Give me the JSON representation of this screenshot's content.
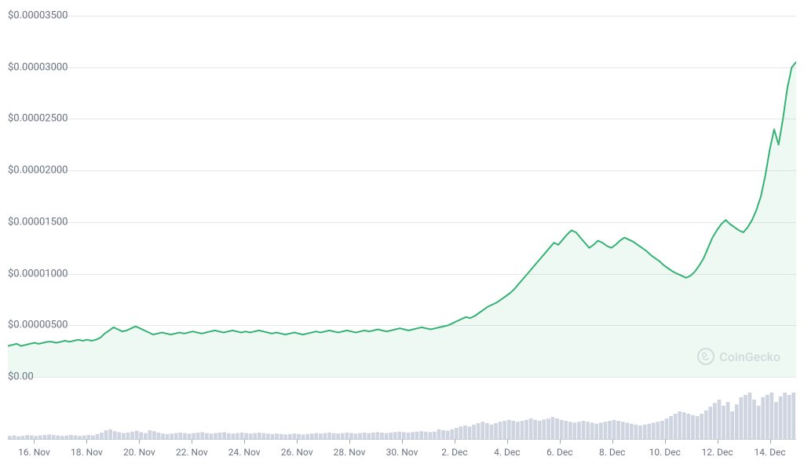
{
  "chart": {
    "type": "line",
    "line_color": "#34b274",
    "line_width": 2,
    "fill_color": "rgba(52,178,116,0.08)",
    "background_color": "#ffffff",
    "grid_color": "#e5e7eb",
    "axis_text_color": "#6b7280",
    "axis_fontsize": 13,
    "ylim": [
      0,
      3.5e-05
    ],
    "y_ticks": [
      {
        "value": 0,
        "label": "$0.00"
      },
      {
        "value": 5e-06,
        "label": "$0.00000500"
      },
      {
        "value": 1e-05,
        "label": "$0.00001000"
      },
      {
        "value": 1.5e-05,
        "label": "$0.00001500"
      },
      {
        "value": 2e-05,
        "label": "$0.00002000"
      },
      {
        "value": 2.5e-05,
        "label": "$0.00002500"
      },
      {
        "value": 3e-05,
        "label": "$0.00003000"
      },
      {
        "value": 3.5e-05,
        "label": "$0.00003500"
      }
    ],
    "x_labels": [
      "16. Nov",
      "18. Nov",
      "20. Nov",
      "22. Nov",
      "24. Nov",
      "26. Nov",
      "28. Nov",
      "30. Nov",
      "2. Dec",
      "4. Dec",
      "6. Dec",
      "8. Dec",
      "10. Dec",
      "12. Dec",
      "14. Dec"
    ],
    "series_price": [
      3e-06,
      3.1e-06,
      3.2e-06,
      3e-06,
      3.1e-06,
      3.2e-06,
      3.3e-06,
      3.2e-06,
      3.3e-06,
      3.4e-06,
      3.4e-06,
      3.3e-06,
      3.4e-06,
      3.5e-06,
      3.4e-06,
      3.5e-06,
      3.6e-06,
      3.5e-06,
      3.6e-06,
      3.5e-06,
      3.6e-06,
      3.8e-06,
      4.2e-06,
      4.5e-06,
      4.8e-06,
      4.6e-06,
      4.4e-06,
      4.5e-06,
      4.7e-06,
      4.9e-06,
      4.7e-06,
      4.5e-06,
      4.3e-06,
      4.1e-06,
      4.2e-06,
      4.3e-06,
      4.2e-06,
      4.1e-06,
      4.2e-06,
      4.3e-06,
      4.2e-06,
      4.3e-06,
      4.4e-06,
      4.3e-06,
      4.2e-06,
      4.3e-06,
      4.4e-06,
      4.5e-06,
      4.4e-06,
      4.3e-06,
      4.4e-06,
      4.5e-06,
      4.4e-06,
      4.3e-06,
      4.4e-06,
      4.3e-06,
      4.4e-06,
      4.5e-06,
      4.4e-06,
      4.3e-06,
      4.2e-06,
      4.3e-06,
      4.2e-06,
      4.1e-06,
      4.2e-06,
      4.3e-06,
      4.2e-06,
      4.1e-06,
      4.2e-06,
      4.3e-06,
      4.4e-06,
      4.3e-06,
      4.4e-06,
      4.5e-06,
      4.4e-06,
      4.3e-06,
      4.4e-06,
      4.5e-06,
      4.4e-06,
      4.3e-06,
      4.4e-06,
      4.5e-06,
      4.4e-06,
      4.5e-06,
      4.6e-06,
      4.5e-06,
      4.4e-06,
      4.5e-06,
      4.6e-06,
      4.7e-06,
      4.6e-06,
      4.5e-06,
      4.6e-06,
      4.7e-06,
      4.8e-06,
      4.7e-06,
      4.6e-06,
      4.7e-06,
      4.8e-06,
      4.9e-06,
      5e-06,
      5.2e-06,
      5.4e-06,
      5.6e-06,
      5.8e-06,
      5.7e-06,
      5.9e-06,
      6.2e-06,
      6.5e-06,
      6.8e-06,
      7e-06,
      7.2e-06,
      7.5e-06,
      7.8e-06,
      8.1e-06,
      8.5e-06,
      9e-06,
      9.5e-06,
      1e-05,
      1.05e-05,
      1.1e-05,
      1.15e-05,
      1.2e-05,
      1.25e-05,
      1.3e-05,
      1.28e-05,
      1.33e-05,
      1.38e-05,
      1.42e-05,
      1.4e-05,
      1.35e-05,
      1.3e-05,
      1.25e-05,
      1.28e-05,
      1.32e-05,
      1.3e-05,
      1.27e-05,
      1.25e-05,
      1.28e-05,
      1.32e-05,
      1.35e-05,
      1.33e-05,
      1.31e-05,
      1.28e-05,
      1.25e-05,
      1.22e-05,
      1.18e-05,
      1.15e-05,
      1.12e-05,
      1.08e-05,
      1.05e-05,
      1.02e-05,
      1e-05,
      9.8e-06,
      9.6e-06,
      9.8e-06,
      1.02e-05,
      1.08e-05,
      1.15e-05,
      1.25e-05,
      1.35e-05,
      1.42e-05,
      1.48e-05,
      1.52e-05,
      1.48e-05,
      1.45e-05,
      1.42e-05,
      1.4e-05,
      1.45e-05,
      1.52e-05,
      1.62e-05,
      1.75e-05,
      1.95e-05,
      2.2e-05,
      2.4e-05,
      2.25e-05,
      2.5e-05,
      2.8e-05,
      3e-05,
      3.05e-05
    ],
    "watermark": {
      "text": "CoinGecko",
      "color": "#9ca3af",
      "fontsize": 16
    }
  },
  "volume": {
    "type": "bar",
    "bar_color": "#b4bdd0",
    "bar_opacity": 0.65,
    "ylim": [
      0,
      100
    ],
    "values": [
      8,
      9,
      7,
      8,
      10,
      9,
      8,
      9,
      10,
      11,
      10,
      9,
      8,
      9,
      10,
      9,
      8,
      9,
      10,
      9,
      12,
      15,
      20,
      22,
      18,
      16,
      14,
      15,
      17,
      19,
      16,
      14,
      20,
      18,
      15,
      13,
      12,
      13,
      14,
      15,
      14,
      13,
      14,
      15,
      16,
      14,
      13,
      14,
      15,
      16,
      14,
      13,
      14,
      15,
      14,
      13,
      14,
      15,
      14,
      13,
      12,
      13,
      12,
      11,
      12,
      13,
      12,
      11,
      12,
      13,
      14,
      13,
      14,
      15,
      14,
      13,
      14,
      15,
      14,
      13,
      14,
      15,
      14,
      15,
      16,
      15,
      14,
      15,
      16,
      17,
      16,
      15,
      16,
      17,
      18,
      17,
      16,
      17,
      22,
      20,
      19,
      22,
      25,
      28,
      30,
      28,
      32,
      35,
      38,
      35,
      32,
      35,
      38,
      40,
      42,
      40,
      38,
      40,
      42,
      45,
      42,
      40,
      43,
      45,
      48,
      45,
      42,
      40,
      38,
      36,
      38,
      40,
      38,
      36,
      34,
      36,
      38,
      40,
      42,
      40,
      38,
      36,
      34,
      32,
      30,
      32,
      34,
      36,
      38,
      40,
      45,
      50,
      55,
      60,
      58,
      55,
      52,
      50,
      55,
      62,
      70,
      78,
      85,
      72,
      80,
      60,
      75,
      90,
      95,
      100,
      85,
      72,
      90,
      95,
      100,
      80,
      92,
      100,
      95,
      100
    ]
  }
}
